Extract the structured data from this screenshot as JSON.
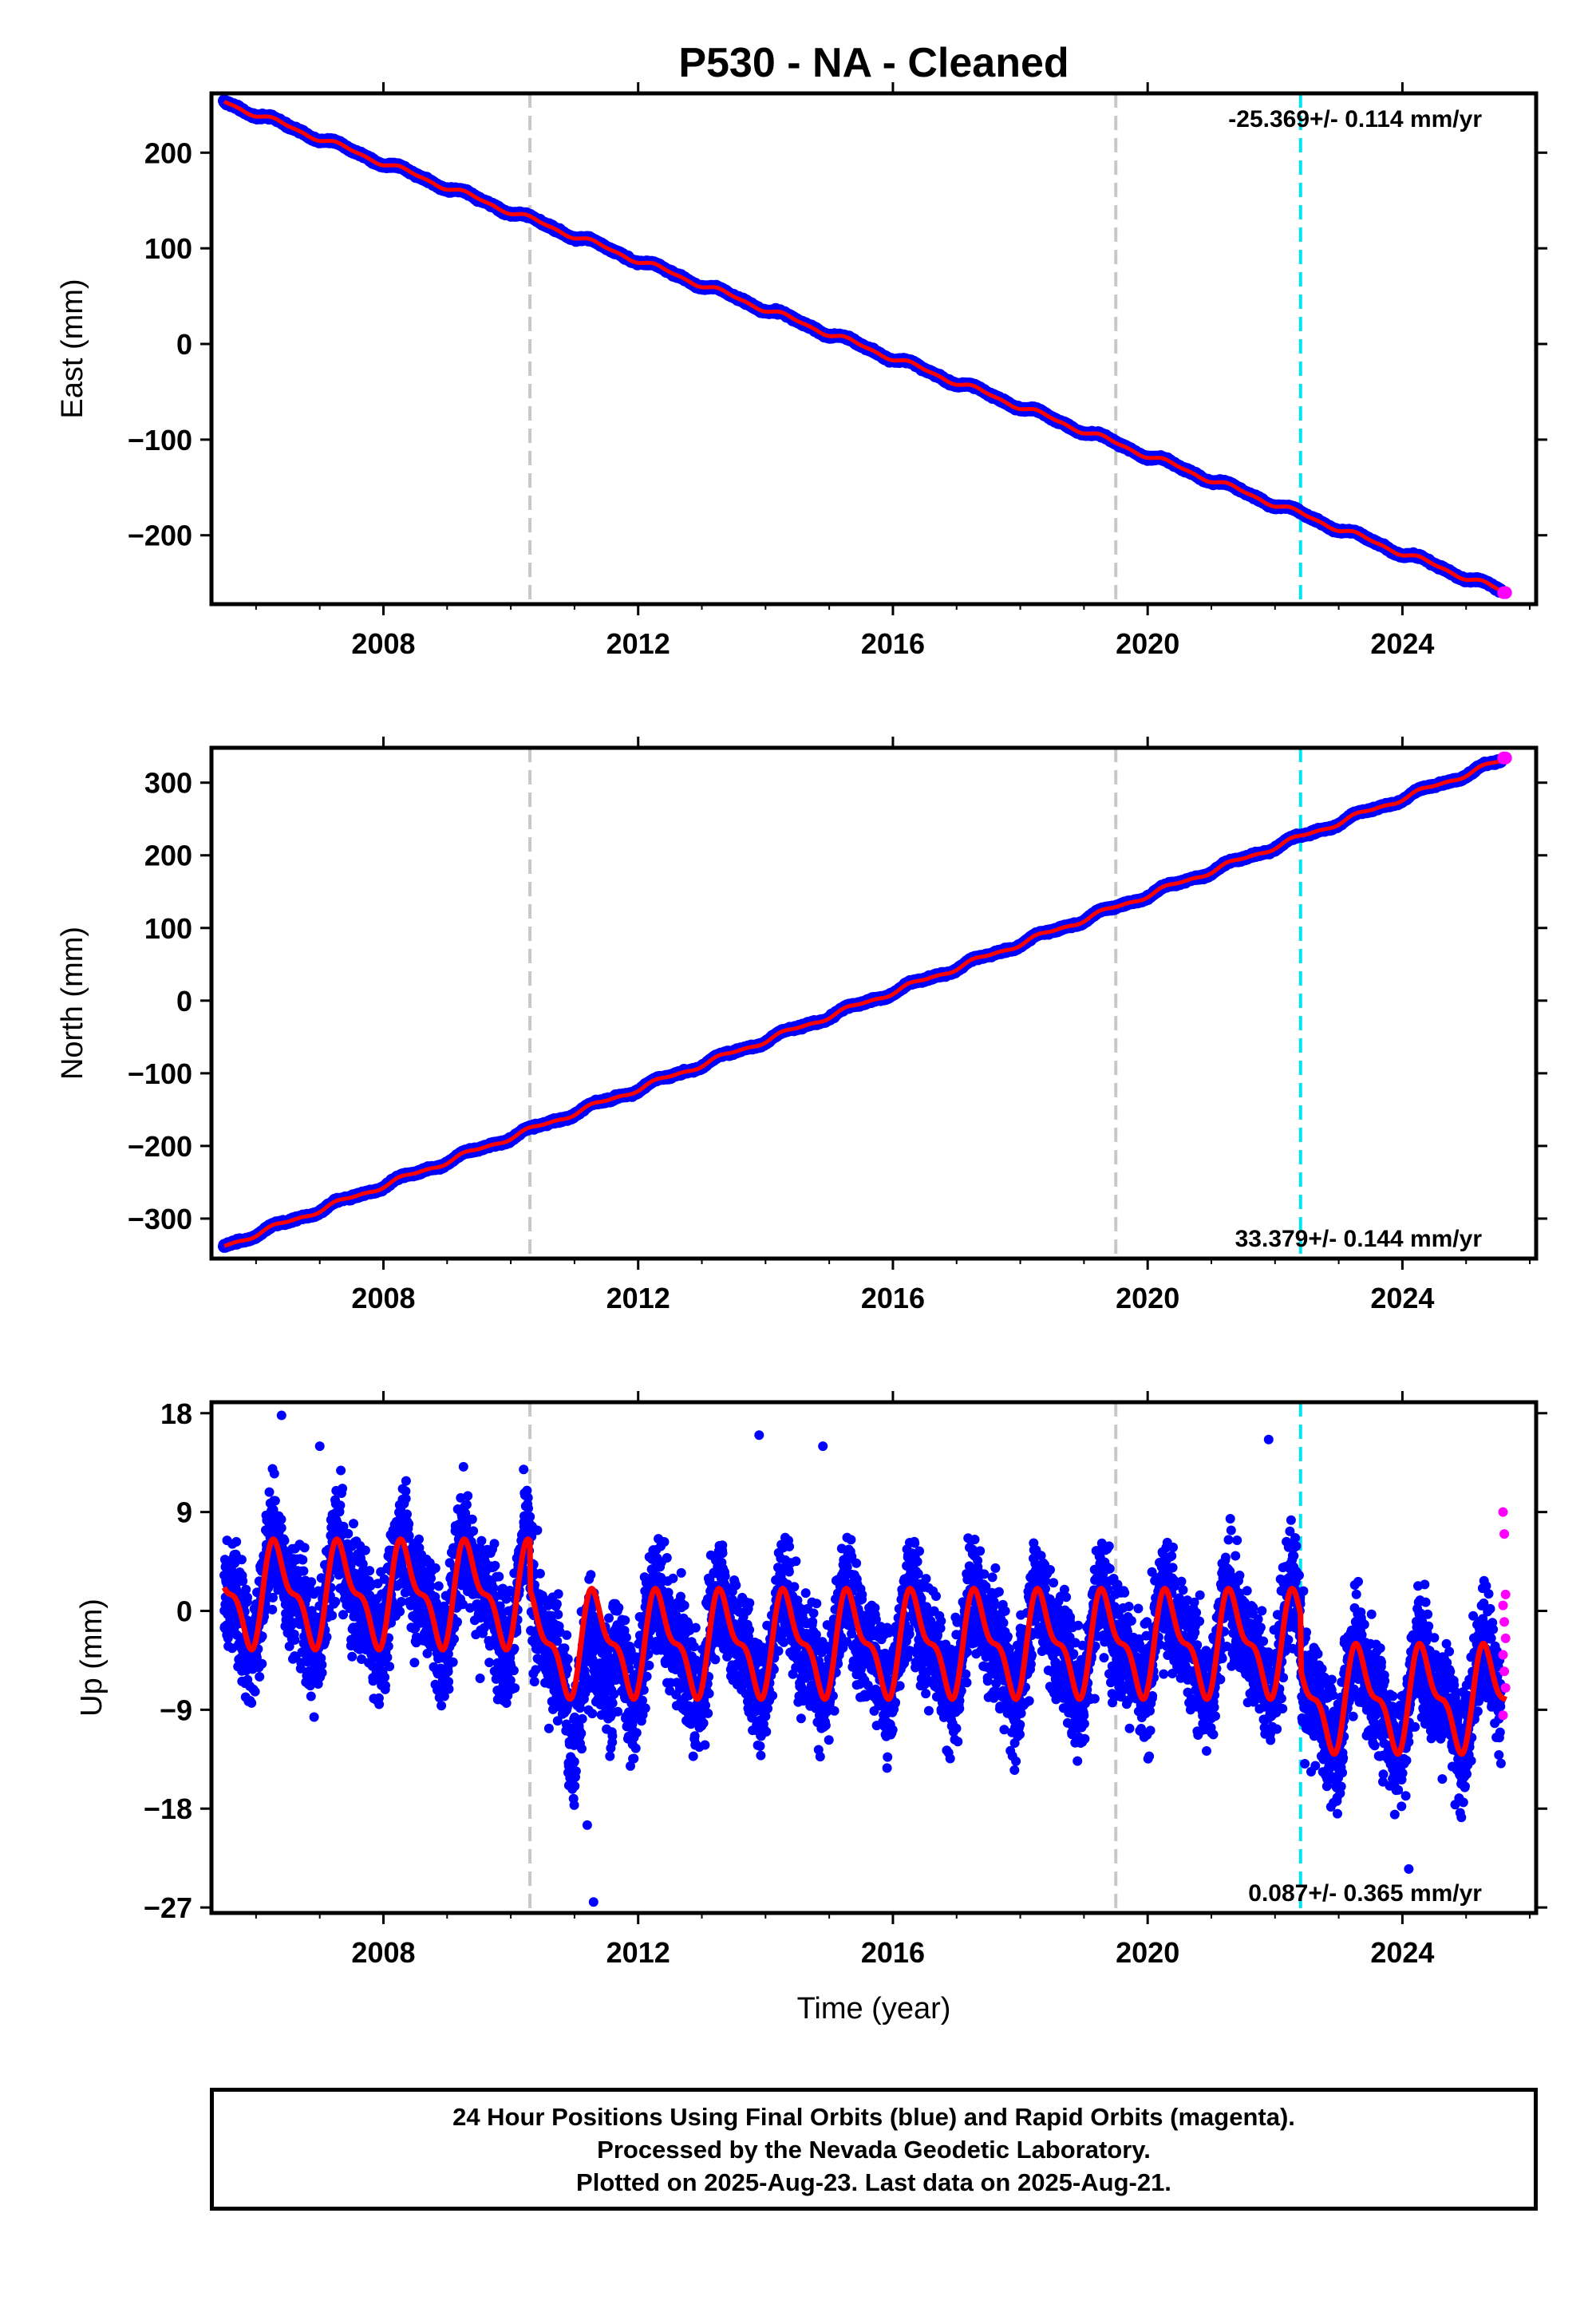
{
  "title": "P530  - NA - Cleaned",
  "colors": {
    "final_orbits": "#0000ff",
    "rapid_orbits": "#ff00ff",
    "model_fit": "#ff0000",
    "gray_event_lines": "#c8c8c8",
    "cyan_event_line": "#00e5ee"
  },
  "footer": {
    "line1": "24 Hour Positions Using Final Orbits (blue) and Rapid Orbits (magenta).",
    "line2": "Processed by the Nevada Geodetic Laboratory.",
    "line3": "Plotted on 2025-Aug-23. Last data on 2025-Aug-21."
  },
  "chart_data": [
    {
      "type": "scatter",
      "ylabel": "East (mm)",
      "xlabel": "",
      "xlim": [
        2005.3,
        2026.1
      ],
      "ylim": [
        -272,
        262
      ],
      "xticks": [
        "2008",
        "2012",
        "2016",
        "2020",
        "2024"
      ],
      "yticks": [
        "200",
        "100",
        "0",
        "−100",
        "−200"
      ],
      "ytick_values": [
        200,
        100,
        0,
        -100,
        -200
      ],
      "rate_label": "-25.369+/- 0.114 mm/yr",
      "rate_position": "top-right",
      "event_lines": {
        "gray": [
          2010.3,
          2019.5
        ],
        "cyan": [
          2022.4
        ]
      },
      "series": [
        {
          "name": "Final Orbits",
          "color": "#0000ff",
          "start": 2005.5,
          "end": 2025.55,
          "start_value": 253,
          "end_value": -258,
          "seasonal_amplitude": 2.5,
          "noise": 1.8
        },
        {
          "name": "Rapid Orbits",
          "color": "#ff00ff",
          "start": 2025.55,
          "end": 2025.64,
          "value": -260
        }
      ]
    },
    {
      "type": "scatter",
      "ylabel": "North (mm)",
      "xlabel": "",
      "xlim": [
        2005.3,
        2026.1
      ],
      "ylim": [
        -355,
        348
      ],
      "xticks": [
        "2008",
        "2012",
        "2016",
        "2020",
        "2024"
      ],
      "yticks": [
        "300",
        "200",
        "100",
        "0",
        "−100",
        "−200",
        "−300"
      ],
      "ytick_values": [
        300,
        200,
        100,
        0,
        -100,
        -200,
        -300
      ],
      "rate_label": "33.379+/- 0.144 mm/yr",
      "rate_position": "bottom-right",
      "event_lines": {
        "gray": [
          2010.3,
          2019.5
        ],
        "cyan": [
          2022.4
        ]
      },
      "series": [
        {
          "name": "Final Orbits",
          "color": "#0000ff",
          "start": 2005.5,
          "end": 2025.55,
          "start_value": -338,
          "end_value": 330,
          "seasonal_amplitude": 3,
          "noise": 2.2
        },
        {
          "name": "Rapid Orbits",
          "color": "#ff00ff",
          "start": 2025.55,
          "end": 2025.64,
          "value": 334
        }
      ]
    },
    {
      "type": "scatter",
      "ylabel": "Up (mm)",
      "xlabel": "Time (year)",
      "xlim": [
        2005.3,
        2026.1
      ],
      "ylim": [
        -27.5,
        19
      ],
      "xticks": [
        "2008",
        "2012",
        "2016",
        "2020",
        "2024"
      ],
      "yticks": [
        "18",
        "9",
        "0",
        "−9",
        "−18",
        "−27"
      ],
      "ytick_values": [
        18,
        9,
        0,
        -9,
        -18,
        -27
      ],
      "rate_label": "0.087+/- 0.365 mm/yr",
      "rate_position": "bottom-right",
      "event_lines": {
        "gray": [
          2010.3,
          2019.5
        ],
        "cyan": [
          2022.4
        ]
      },
      "offsets_mm": [
        {
          "year": 2010.3,
          "value": -4.5
        },
        {
          "year": 2022.4,
          "value": -5
        }
      ],
      "series": [
        {
          "name": "Final Orbits",
          "color": "#0000ff",
          "start": 2005.5,
          "end": 2025.55,
          "mean": 1.5,
          "seasonal_amplitude": 4,
          "noise": 3.6
        },
        {
          "name": "Rapid Orbits",
          "color": "#ff00ff",
          "start": 2025.55,
          "end": 2025.64,
          "values": [
            9,
            7,
            1.5,
            0.5,
            -1,
            -2.5,
            -4,
            -5.5,
            -7,
            -9.5
          ]
        },
        {
          "name": "Model",
          "color": "#ff0000",
          "type": "line"
        }
      ]
    }
  ]
}
